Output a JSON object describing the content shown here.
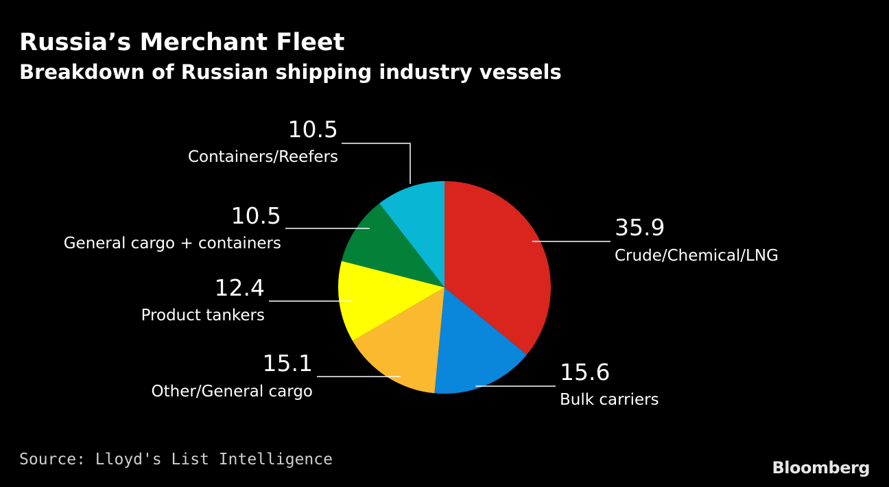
{
  "chart_data": {
    "type": "pie",
    "title": "Russia’s Merchant Fleet",
    "subtitle": "Breakdown of Russian shipping industry vessels",
    "slices": [
      {
        "label": "Crude/Chemical/LNG",
        "value": 35.9,
        "display": "35.9",
        "color": "#D9251D"
      },
      {
        "label": "Bulk carriers",
        "value": 15.6,
        "display": "15.6",
        "color": "#0A86DB"
      },
      {
        "label": "Other/General cargo",
        "value": 15.1,
        "display": "15.1",
        "color": "#FBB92F"
      },
      {
        "label": "Product tankers",
        "value": 12.4,
        "display": "12.4",
        "color": "#FFFF00"
      },
      {
        "label": "General cargo + containers",
        "value": 10.5,
        "display": "10.5",
        "color": "#038139"
      },
      {
        "label": "Containers/Reefers",
        "value": 10.5,
        "display": "10.5",
        "color": "#09B6D4"
      }
    ],
    "start": "12 o'clock",
    "direction": "clockwise"
  },
  "footer": {
    "source": "Source: Lloyd's List Intelligence",
    "brand": "Bloomberg"
  }
}
